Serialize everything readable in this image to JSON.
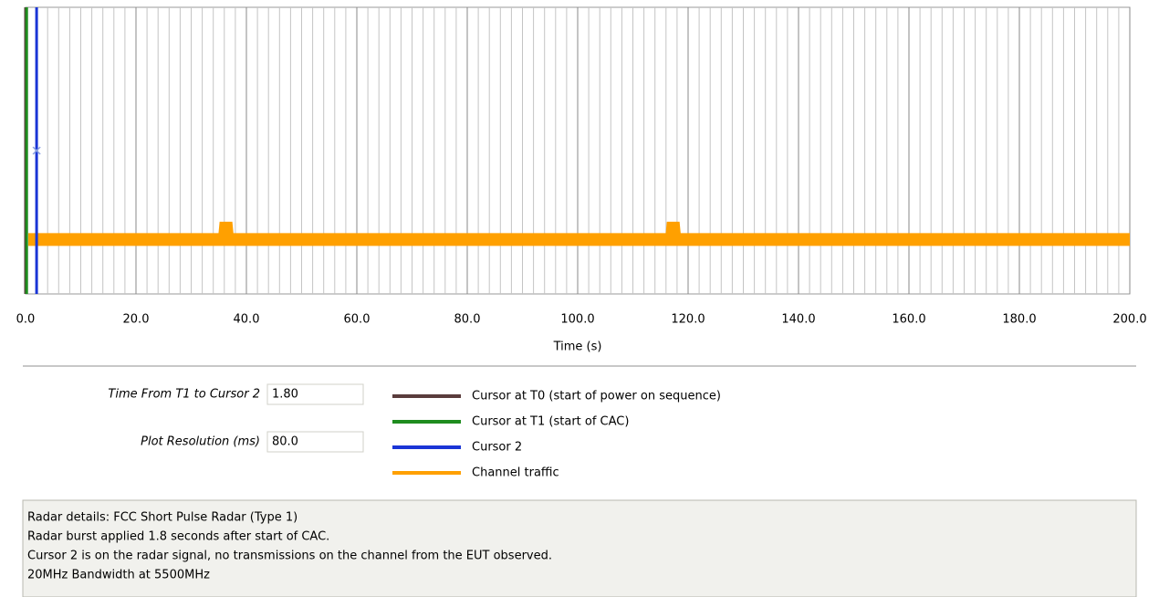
{
  "chart_data": {
    "type": "timeline",
    "xlabel": "Time (s)",
    "xlim": [
      0,
      200
    ],
    "xticks": [
      {
        "value": 0,
        "label": "0.0"
      },
      {
        "value": 20,
        "label": "20.0"
      },
      {
        "value": 40,
        "label": "40.0"
      },
      {
        "value": 60,
        "label": "60.0"
      },
      {
        "value": 80,
        "label": "80.0"
      },
      {
        "value": 100,
        "label": "100.0"
      },
      {
        "value": 120,
        "label": "120.0"
      },
      {
        "value": 140,
        "label": "140.0"
      },
      {
        "value": 160,
        "label": "160.0"
      },
      {
        "value": 180,
        "label": "180.0"
      },
      {
        "value": 200,
        "label": "200.0"
      }
    ],
    "xminorticks": [
      2,
      4,
      6,
      8,
      10,
      12,
      14,
      16,
      18,
      22,
      24,
      26,
      28,
      30,
      32,
      34,
      36,
      38,
      42,
      44,
      46,
      48,
      50,
      52,
      54,
      56,
      58,
      62,
      64,
      66,
      68,
      70,
      72,
      74,
      76,
      78,
      82,
      84,
      86,
      88,
      90,
      92,
      94,
      96,
      98,
      102,
      104,
      106,
      108,
      110,
      112,
      114,
      116,
      118,
      122,
      124,
      126,
      128,
      130,
      132,
      134,
      136,
      138,
      142,
      144,
      146,
      148,
      150,
      152,
      154,
      156,
      158,
      162,
      164,
      166,
      168,
      170,
      172,
      174,
      176,
      178,
      182,
      184,
      186,
      188,
      190,
      192,
      194,
      196,
      198
    ],
    "ylim": [
      0,
      1
    ],
    "cursors": [
      {
        "name": "Cursor at T0 (start of power on sequence)",
        "color": "#5a3c3c",
        "x": 0
      },
      {
        "name": "Cursor at T1 (start of CAC)",
        "color": "#1e8c1e",
        "x": 0.2
      },
      {
        "name": "Cursor 2",
        "color": "#1a35d6",
        "x": 2.0
      }
    ],
    "series": [
      {
        "name": "Channel traffic",
        "color": "#ffa000",
        "x": [
          0.5,
          36,
          36.3,
          36.6,
          117,
          117.3,
          117.6,
          200
        ],
        "values": [
          0.19,
          0.19,
          0.25,
          0.19,
          0.19,
          0.25,
          0.19,
          0.19
        ]
      }
    ]
  },
  "fields": [
    {
      "label": "Time From T1 to Cursor 2",
      "value": "1.80"
    },
    {
      "label": "Plot Resolution (ms)",
      "value": "80.0"
    }
  ],
  "details": [
    "Radar details: FCC Short Pulse Radar (Type 1)",
    "Radar burst applied 1.8 seconds after start of CAC.",
    "Cursor 2 is on the radar signal, no transmissions on the channel from the EUT observed.",
    "20MHz Bandwidth at 5500MHz"
  ]
}
